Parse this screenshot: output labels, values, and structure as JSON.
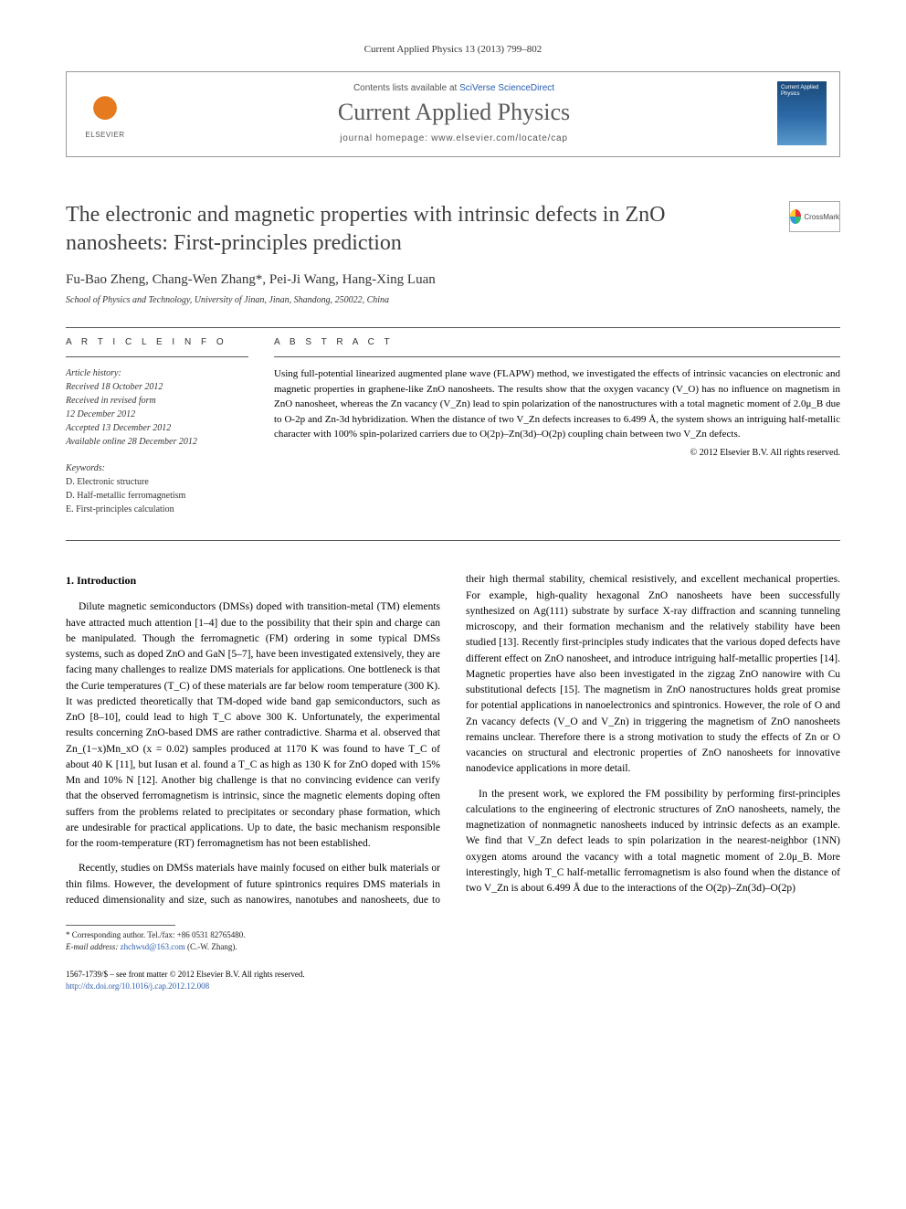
{
  "journal_ref": "Current Applied Physics 13 (2013) 799–802",
  "header": {
    "contents_prefix": "Contents lists available at ",
    "contents_link": "SciVerse ScienceDirect",
    "journal_title": "Current Applied Physics",
    "homepage_prefix": "journal homepage: ",
    "homepage_url": "www.elsevier.com/locate/cap",
    "publisher": "ELSEVIER",
    "cover_text": "Current Applied Physics"
  },
  "crossmark_label": "CrossMark",
  "title": "The electronic and magnetic properties with intrinsic defects in ZnO nanosheets: First-principles prediction",
  "authors": "Fu-Bao Zheng, Chang-Wen Zhang*, Pei-Ji Wang, Hang-Xing Luan",
  "affiliation": "School of Physics and Technology, University of Jinan, Jinan, Shandong, 250022, China",
  "article_info": {
    "label": "A R T I C L E   I N F O",
    "history_title": "Article history:",
    "history": [
      "Received 18 October 2012",
      "Received in revised form",
      "12 December 2012",
      "Accepted 13 December 2012",
      "Available online 28 December 2012"
    ],
    "keywords_title": "Keywords:",
    "keywords": [
      "D. Electronic structure",
      "D. Half-metallic ferromagnetism",
      "E. First-principles calculation"
    ]
  },
  "abstract": {
    "label": "A B S T R A C T",
    "text": "Using full-potential linearized augmented plane wave (FLAPW) method, we investigated the effects of intrinsic vacancies on electronic and magnetic properties in graphene-like ZnO nanosheets. The results show that the oxygen vacancy (V_O) has no influence on magnetism in ZnO nanosheet, whereas the Zn vacancy (V_Zn) lead to spin polarization of the nanostructures with a total magnetic moment of 2.0μ_B due to O-2p and Zn-3d hybridization. When the distance of two V_Zn defects increases to 6.499 Å, the system shows an intriguing half-metallic character with 100% spin-polarized carriers due to O(2p)–Zn(3d)–O(2p) coupling chain between two V_Zn defects.",
    "copyright": "© 2012 Elsevier B.V. All rights reserved."
  },
  "section1": {
    "heading": "1. Introduction",
    "p1": "Dilute magnetic semiconductors (DMSs) doped with transition-metal (TM) elements have attracted much attention [1–4] due to the possibility that their spin and charge can be manipulated. Though the ferromagnetic (FM) ordering in some typical DMSs systems, such as doped ZnO and GaN [5–7], have been investigated extensively, they are facing many challenges to realize DMS materials for applications. One bottleneck is that the Curie temperatures (T_C) of these materials are far below room temperature (300 K). It was predicted theoretically that TM-doped wide band gap semiconductors, such as ZnO [8–10], could lead to high T_C above 300 K. Unfortunately, the experimental results concerning ZnO-based DMS are rather contradictive. Sharma et al. observed that Zn_(1−x)Mn_xO (x = 0.02) samples produced at 1170 K was found to have T_C of about 40 K [11], but Iusan et al. found a T_C as high as 130 K for ZnO doped with 15% Mn and 10% N [12]. Another big challenge is that no convincing evidence can verify that the observed ferromagnetism is intrinsic, since the magnetic elements doping often suffers from the problems related to precipitates or secondary phase formation, which are undesirable for practical applications. Up to date, the basic mechanism responsible for the room-temperature (RT) ferromagnetism has not been established.",
    "p2": "Recently, studies on DMSs materials have mainly focused on either bulk materials or thin films. However, the development of future spintronics requires DMS materials in reduced dimensionality and size, such as nanowires, nanotubes and nanosheets, due to their high thermal stability, chemical resistively, and excellent mechanical properties. For example, high-quality hexagonal ZnO nanosheets have been successfully synthesized on Ag(111) substrate by surface X-ray diffraction and scanning tunneling microscopy, and their formation mechanism and the relatively stability have been studied [13]. Recently first-principles study indicates that the various doped defects have different effect on ZnO nanosheet, and introduce intriguing half-metallic properties [14]. Magnetic properties have also been investigated in the zigzag ZnO nanowire with Cu substitutional defects [15]. The magnetism in ZnO nanostructures holds great promise for potential applications in nanoelectronics and spintronics. However, the role of O and Zn vacancy defects (V_O and V_Zn) in triggering the magnetism of ZnO nanosheets remains unclear. Therefore there is a strong motivation to study the effects of Zn or O vacancies on structural and electronic properties of ZnO nanosheets for innovative nanodevice applications in more detail.",
    "p3": "In the present work, we explored the FM possibility by performing first-principles calculations to the engineering of electronic structures of ZnO nanosheets, namely, the magnetization of nonmagnetic nanosheets induced by intrinsic defects as an example. We find that V_Zn defect leads to spin polarization in the nearest-neighbor (1NN) oxygen atoms around the vacancy with a total magnetic moment of 2.0μ_B. More interestingly, high T_C half-metallic ferromagnetism is also found when the distance of two V_Zn is about 6.499 Å due to the interactions of the O(2p)–Zn(3d)–O(2p)"
  },
  "footnote": {
    "corr": "* Corresponding author. Tel./fax: +86 0531 82765480.",
    "email_label": "E-mail address: ",
    "email": "zhchwsd@163.com",
    "email_suffix": " (C.-W. Zhang)."
  },
  "bottom": {
    "line1": "1567-1739/$ – see front matter © 2012 Elsevier B.V. All rights reserved.",
    "doi_url": "http://dx.doi.org/10.1016/j.cap.2012.12.008"
  },
  "colors": {
    "link": "#2a5db0",
    "text": "#000000",
    "muted": "#555555",
    "rule": "#555555"
  }
}
